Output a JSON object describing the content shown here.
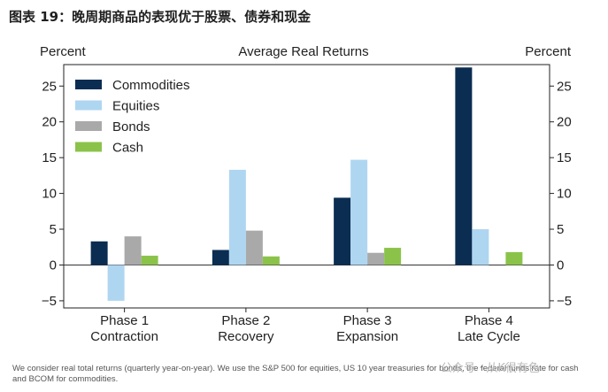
{
  "figure_title": "图表 19：晚周期商品的表现优于股票、债券和现金",
  "footnote": "We consider real total returns (quarterly year-on-year). We use the S&P 500 for equities, US 10 year treasuries for bonds, the federal funds rate for cash and BCOM for commodities.",
  "watermark": "公众号 · 从K很有色",
  "chart_data": {
    "type": "bar",
    "title": "Average Real Returns",
    "ylabel_left": "Percent",
    "ylabel_right": "Percent",
    "ylim": [
      -6,
      28
    ],
    "yticks": [
      -5,
      0,
      5,
      10,
      15,
      20,
      25
    ],
    "ytick_labels": [
      "−5",
      "0",
      "5",
      "10",
      "15",
      "20",
      "25"
    ],
    "categories": [
      "Phase 1\nContraction",
      "Phase 2\nRecovery",
      "Phase 3\nExpansion",
      "Phase 4\nLate Cycle"
    ],
    "series": [
      {
        "name": "Commodities",
        "color": "#0b2d52",
        "values": [
          3.3,
          2.1,
          9.4,
          27.6
        ]
      },
      {
        "name": "Equities",
        "color": "#aed6f1",
        "values": [
          -5.0,
          13.3,
          14.7,
          5.0
        ]
      },
      {
        "name": "Bonds",
        "color": "#a9a9a9",
        "values": [
          4.0,
          4.8,
          1.7,
          null
        ]
      },
      {
        "name": "Cash",
        "color": "#8bc34a",
        "values": [
          1.3,
          1.2,
          2.4,
          1.8
        ]
      }
    ],
    "legend_position": "top-left"
  }
}
